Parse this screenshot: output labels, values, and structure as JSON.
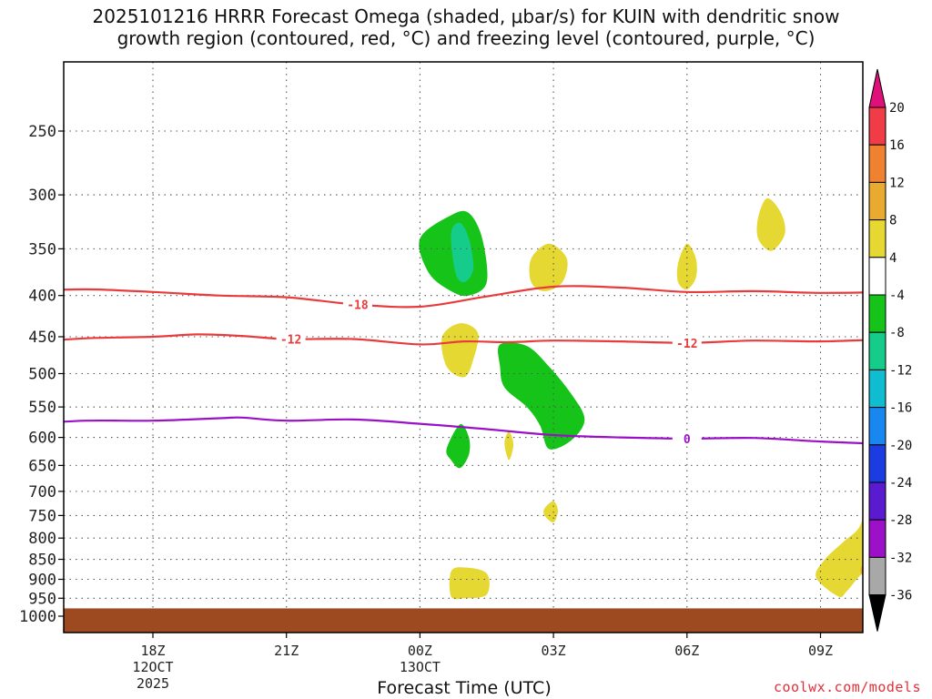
{
  "title_line1": "2025101216 HRRR Forecast Omega (shaded, μbar/s) for KUIN with dendritic snow",
  "title_line2": "growth region (contoured, red, °C) and freezing level (contoured, purple, °C)",
  "credit": "coolwx.com/models",
  "chart_data": {
    "type": "contour",
    "title": "2025101216 HRRR Forecast Omega (shaded, μbar/s) for KUIN with dendritic snow growth region (contoured, red, °C) and freezing level (contoured, purple, °C)",
    "xlabel": "Forecast Time (UTC)",
    "ylabel": "",
    "x_range_hours": [
      -3,
      15
    ],
    "y_range_hPa": [
      200,
      1050
    ],
    "x_ticks": [
      {
        "hour": 0,
        "label": "18Z",
        "sub": [
          "12OCT",
          "2025"
        ]
      },
      {
        "hour": 3,
        "label": "21Z",
        "sub": []
      },
      {
        "hour": 6,
        "label": "00Z",
        "sub": [
          "13OCT"
        ]
      },
      {
        "hour": 9,
        "label": "03Z",
        "sub": []
      },
      {
        "hour": 12,
        "label": "06Z",
        "sub": []
      },
      {
        "hour": 15,
        "label": "09Z",
        "sub": []
      }
    ],
    "y_ticks": [
      250,
      300,
      350,
      400,
      450,
      500,
      550,
      600,
      650,
      700,
      750,
      800,
      850,
      900,
      950,
      1000
    ],
    "colorbar": {
      "labels": [
        "20",
        "16",
        "12",
        "8",
        "4",
        "-4",
        "-8",
        "-12",
        "-16",
        "-20",
        "-24",
        "-28",
        "-32",
        "-36"
      ],
      "bands": [
        {
          "from": 16,
          "to": 20,
          "color": "#f03c46"
        },
        {
          "from": 12,
          "to": 16,
          "color": "#ef8230"
        },
        {
          "from": 8,
          "to": 12,
          "color": "#e9aa32"
        },
        {
          "from": 4,
          "to": 8,
          "color": "#e6d832"
        },
        {
          "from": -4,
          "to": 4,
          "color": "#ffffff"
        },
        {
          "from": -8,
          "to": -4,
          "color": "#16c318"
        },
        {
          "from": -12,
          "to": -8,
          "color": "#16cc8a"
        },
        {
          "from": -16,
          "to": -12,
          "color": "#10bcd0"
        },
        {
          "from": -20,
          "to": -16,
          "color": "#1888f0"
        },
        {
          "from": -24,
          "to": -20,
          "color": "#1a3ce0"
        },
        {
          "from": -28,
          "to": -24,
          "color": "#5a1ad0"
        },
        {
          "from": -32,
          "to": -28,
          "color": "#9c10c8"
        },
        {
          "from": -36,
          "to": -32,
          "color": "#a8a8a8"
        }
      ],
      "top_arrow_color": "#e0107a",
      "bottom_arrow_color": "#000000"
    },
    "ground_color": "#9e4a20",
    "ground_top_hPa": 978,
    "contours": [
      {
        "name": "-18C",
        "label": "-18",
        "color": "#e83c3c",
        "label_hour": 4.6,
        "points": [
          [
            -3,
            395
          ],
          [
            -1.5,
            393
          ],
          [
            0,
            396
          ],
          [
            1.5,
            400
          ],
          [
            3,
            402
          ],
          [
            4.5,
            410
          ],
          [
            6,
            413
          ],
          [
            7.5,
            401
          ],
          [
            9,
            390
          ],
          [
            10.5,
            391
          ],
          [
            12,
            396
          ],
          [
            13.5,
            395
          ],
          [
            15,
            397
          ],
          [
            16.6,
            396
          ]
        ]
      },
      {
        "name": "-12C",
        "label": "-12",
        "color": "#e83c3c",
        "label_hour": 3.1,
        "label_hour2": 12.0,
        "points": [
          [
            -3,
            458
          ],
          [
            -1.5,
            452
          ],
          [
            0,
            450
          ],
          [
            1,
            447
          ],
          [
            2,
            449
          ],
          [
            3,
            453
          ],
          [
            4.5,
            453
          ],
          [
            6,
            460
          ],
          [
            7,
            456
          ],
          [
            8,
            457
          ],
          [
            9,
            455
          ],
          [
            10.5,
            456
          ],
          [
            12,
            458
          ],
          [
            13.5,
            455
          ],
          [
            15,
            456
          ],
          [
            16.6,
            453
          ]
        ]
      },
      {
        "name": "0C",
        "label": "0",
        "color": "#9a10c6",
        "label_hour": 12.0,
        "points": [
          [
            -3,
            578
          ],
          [
            -1.5,
            572
          ],
          [
            0,
            572
          ],
          [
            1.5,
            568
          ],
          [
            2,
            567
          ],
          [
            3,
            572
          ],
          [
            4.5,
            570
          ],
          [
            6,
            577
          ],
          [
            7.5,
            586
          ],
          [
            9,
            596
          ],
          [
            10.5,
            600
          ],
          [
            12,
            602
          ],
          [
            13.5,
            601
          ],
          [
            15,
            607
          ],
          [
            16.6,
            612
          ]
        ]
      }
    ],
    "omega_regions": [
      {
        "value": -6,
        "color_band": "-8 to -4",
        "shape": [
          [
            6.0,
            340
          ],
          [
            6.7,
            318
          ],
          [
            7.1,
            316
          ],
          [
            7.4,
            340
          ],
          [
            7.5,
            385
          ],
          [
            7.1,
            400
          ],
          [
            6.7,
            395
          ],
          [
            6.2,
            375
          ]
        ]
      },
      {
        "value": -10,
        "color_band": "-12 to -8",
        "shape": [
          [
            6.7,
            335
          ],
          [
            6.9,
            325
          ],
          [
            7.1,
            340
          ],
          [
            7.2,
            370
          ],
          [
            7.0,
            385
          ],
          [
            6.8,
            375
          ]
        ]
      },
      {
        "value": -6,
        "color_band": "-8 to -4",
        "shape": [
          [
            7.8,
            460
          ],
          [
            8.4,
            462
          ],
          [
            8.9,
            490
          ],
          [
            9.4,
            530
          ],
          [
            9.7,
            570
          ],
          [
            9.4,
            605
          ],
          [
            8.9,
            620
          ],
          [
            8.7,
            580
          ],
          [
            8.4,
            550
          ],
          [
            7.9,
            520
          ],
          [
            7.8,
            490
          ]
        ]
      },
      {
        "value": -6,
        "color_band": "-8 to -4",
        "shape": [
          [
            6.6,
            620
          ],
          [
            6.9,
            578
          ],
          [
            7.1,
            600
          ],
          [
            7.1,
            630
          ],
          [
            6.9,
            655
          ],
          [
            6.7,
            640
          ]
        ]
      },
      {
        "value": 5,
        "color_band": "4 to 8",
        "shape": [
          [
            8.5,
            360
          ],
          [
            8.9,
            345
          ],
          [
            9.3,
            360
          ],
          [
            9.2,
            385
          ],
          [
            8.8,
            395
          ],
          [
            8.5,
            385
          ]
        ]
      },
      {
        "value": 5,
        "color_band": "4 to 8",
        "shape": [
          [
            11.8,
            365
          ],
          [
            12.0,
            345
          ],
          [
            12.2,
            360
          ],
          [
            12.2,
            380
          ],
          [
            12.0,
            393
          ],
          [
            11.8,
            385
          ]
        ]
      },
      {
        "value": 5,
        "color_band": "4 to 8",
        "shape": [
          [
            13.6,
            320
          ],
          [
            13.8,
            303
          ],
          [
            14.1,
            315
          ],
          [
            14.2,
            335
          ],
          [
            13.9,
            352
          ],
          [
            13.6,
            340
          ]
        ]
      },
      {
        "value": 5,
        "color_band": "4 to 8",
        "shape": [
          [
            6.5,
            450
          ],
          [
            6.9,
            433
          ],
          [
            7.3,
            445
          ],
          [
            7.2,
            480
          ],
          [
            7.0,
            505
          ],
          [
            6.6,
            490
          ]
        ]
      },
      {
        "value": 5,
        "color_band": "4 to 8",
        "shape": [
          [
            7.9,
            610
          ],
          [
            8.0,
            590
          ],
          [
            8.1,
            612
          ],
          [
            8.0,
            640
          ]
        ]
      },
      {
        "value": 5,
        "color_band": "4 to 8",
        "shape": [
          [
            8.8,
            735
          ],
          [
            9.0,
            720
          ],
          [
            9.1,
            740
          ],
          [
            9.0,
            765
          ],
          [
            8.8,
            750
          ]
        ]
      },
      {
        "value": 5,
        "color_band": "4 to 8",
        "shape": [
          [
            6.7,
            880
          ],
          [
            7.0,
            870
          ],
          [
            7.5,
            885
          ],
          [
            7.5,
            940
          ],
          [
            7.0,
            950
          ],
          [
            6.7,
            945
          ]
        ]
      },
      {
        "value": 5,
        "color_band": "4 to 8",
        "shape": [
          [
            16.6,
            380
          ],
          [
            16.3,
            395
          ],
          [
            16.3,
            410
          ],
          [
            16.6,
            420
          ]
        ]
      },
      {
        "value": 5,
        "color_band": "4 to 8",
        "shape": [
          [
            16.6,
            550
          ],
          [
            16.3,
            570
          ],
          [
            16.0,
            620
          ],
          [
            16.0,
            700
          ],
          [
            15.9,
            770
          ],
          [
            15.5,
            810
          ],
          [
            15.1,
            850
          ],
          [
            14.9,
            895
          ],
          [
            15.4,
            945
          ],
          [
            15.6,
            930
          ],
          [
            16.0,
            880
          ],
          [
            16.6,
            860
          ]
        ]
      },
      {
        "value": 9,
        "color_band": "8 to 12",
        "shape": [
          [
            16.6,
            820
          ],
          [
            16.1,
            845
          ],
          [
            15.9,
            880
          ],
          [
            16.2,
            915
          ],
          [
            16.6,
            920
          ]
        ]
      }
    ]
  }
}
